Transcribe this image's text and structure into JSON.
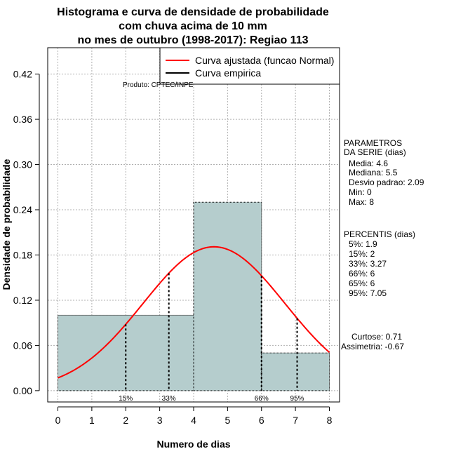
{
  "chart_data": {
    "type": "bar",
    "title_lines": [
      "Histograma e curva de densidade de probabilidade",
      "com chuva acima de 10 mm",
      "no mes de outubro (1998-2017): Regiao 113"
    ],
    "xlabel": "Numero de dias",
    "ylabel": "Densidade de probabilidade",
    "xlim": [
      -0.3,
      8.3
    ],
    "ylim": [
      -0.015,
      0.455
    ],
    "x_ticks": [
      0,
      1,
      2,
      3,
      4,
      5,
      6,
      7,
      8
    ],
    "y_ticks": [
      0.0,
      0.06,
      0.12,
      0.18,
      0.24,
      0.3,
      0.36,
      0.42
    ],
    "y_tick_labels": [
      "0.00",
      "0.06",
      "0.12",
      "0.18",
      "0.24",
      "0.30",
      "0.36",
      "0.42"
    ],
    "grid": true,
    "bins": [
      {
        "x0": 0,
        "x1": 4,
        "density": 0.1
      },
      {
        "x0": 4,
        "x1": 6,
        "density": 0.25
      },
      {
        "x0": 6,
        "x1": 8,
        "density": 0.05
      }
    ],
    "fitted_curve": {
      "name": "Curva ajustada (funcao Normal)",
      "color": "#ff0000",
      "mean": 4.6,
      "sd": 2.09,
      "x_range": [
        0,
        8
      ]
    },
    "empirical_curve": {
      "name": "Curva empirica",
      "color": "#000000"
    },
    "percentile_markers": [
      {
        "label": "15%",
        "x": 2
      },
      {
        "label": "33%",
        "x": 3.27
      },
      {
        "label": "66%",
        "x": 6
      },
      {
        "label": "95%",
        "x": 7.05
      }
    ],
    "legend_position": "top-right",
    "product_note": "Produto: CPTEC/INPE",
    "side_panel": {
      "params_title": [
        "PARAMETROS",
        "DA SERIE (dias)"
      ],
      "params": [
        "Media: 4.6",
        "Mediana: 5.5",
        "Desvio padrao: 2.09",
        "Min: 0",
        "Max: 8"
      ],
      "percentis_title": "PERCENTIS (dias)",
      "percentis": [
        "5%: 1.9",
        "15%: 2",
        "33%: 3.27",
        "66%: 6",
        "65%: 6",
        "95%: 7.05"
      ],
      "curtose": "Curtose: 0.71",
      "assimetria": "Assimetria: -0.67"
    },
    "colors": {
      "bar_fill": "#b5cdcd",
      "grid": "#b0b0b0",
      "axis": "#000000"
    }
  }
}
